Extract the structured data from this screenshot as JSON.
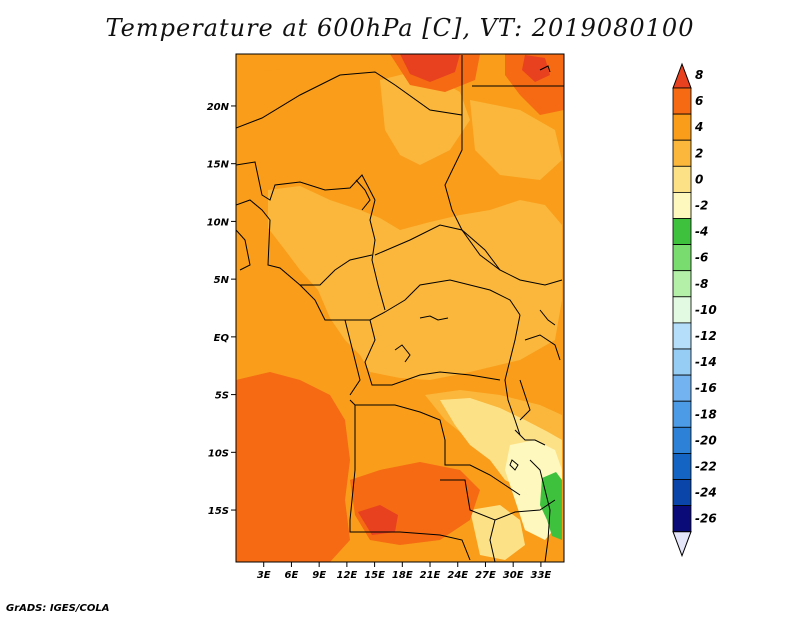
{
  "title": "Temperature at 600hPa [C], VT: 2019080100",
  "footer": "GrADS: IGES/COLA",
  "map": {
    "lon_range": [
      0,
      35.5
    ],
    "lat_range": [
      -19.5,
      24.5
    ],
    "lat_ticks": [
      {
        "value": 20,
        "label": "20N"
      },
      {
        "value": 15,
        "label": "15N"
      },
      {
        "value": 10,
        "label": "10N"
      },
      {
        "value": 5,
        "label": "5N"
      },
      {
        "value": 0,
        "label": "EQ"
      },
      {
        "value": -5,
        "label": "5S"
      },
      {
        "value": -10,
        "label": "10S"
      },
      {
        "value": -15,
        "label": "15S"
      }
    ],
    "lon_ticks": [
      {
        "value": 3,
        "label": "3E"
      },
      {
        "value": 6,
        "label": "6E"
      },
      {
        "value": 9,
        "label": "9E"
      },
      {
        "value": 12,
        "label": "12E"
      },
      {
        "value": 15,
        "label": "15E"
      },
      {
        "value": 18,
        "label": "18E"
      },
      {
        "value": 21,
        "label": "21E"
      },
      {
        "value": 24,
        "label": "24E"
      },
      {
        "value": 27,
        "label": "27E"
      },
      {
        "value": 30,
        "label": "30E"
      },
      {
        "value": 33,
        "label": "33E"
      }
    ],
    "colors": {
      "t_6_8": "#e8411f",
      "t_4_6": "#f56a12",
      "t_2_4": "#f99d1a",
      "t_0_2": "#fbb73b",
      "t_m2_0": "#fde187",
      "t_m4_m2": "#fef8bf",
      "t_m6_m4": "#3ec23e",
      "border": "#000000"
    }
  },
  "colorbar": {
    "labels": [
      "8",
      "6",
      "4",
      "2",
      "0",
      "-2",
      "-4",
      "-6",
      "-8",
      "-10",
      "-12",
      "-14",
      "-16",
      "-18",
      "-20",
      "-22",
      "-24",
      "-26"
    ],
    "colors": [
      "#f03c1e",
      "#f56a12",
      "#f99d1a",
      "#fbb73b",
      "#fde187",
      "#fef8bf",
      "#3ec23e",
      "#78dc6e",
      "#b5f0a8",
      "#e1fae1",
      "#b4defa",
      "#96cdf5",
      "#73b4f0",
      "#4b9be6",
      "#2d82d7",
      "#1464c3",
      "#0a46aa",
      "#0a0a78"
    ],
    "top_color": "#e8411f",
    "bottom_color": "#e6e6fa"
  }
}
